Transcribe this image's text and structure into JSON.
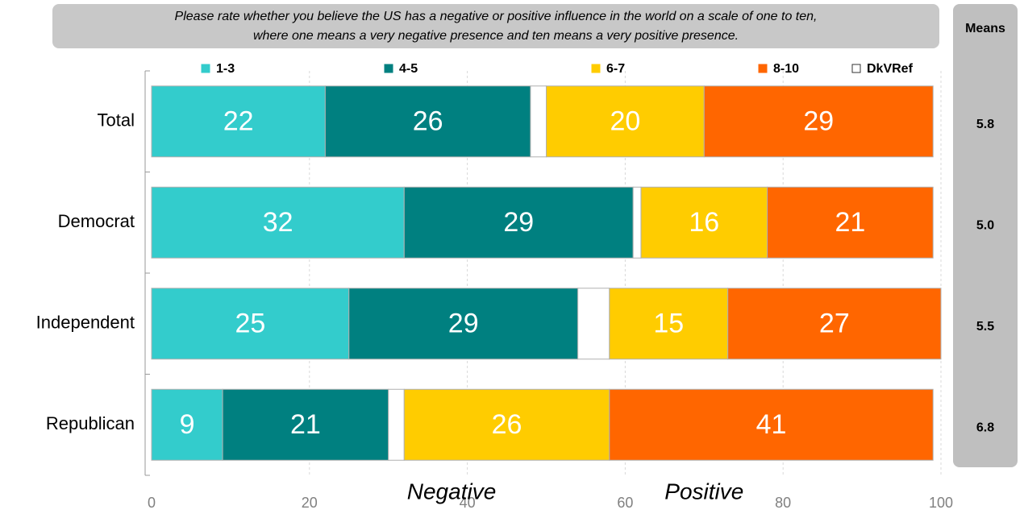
{
  "chart_data": {
    "type": "stacked_bar_horizontal",
    "title": [
      "Please rate whether you believe the US has a negative or positive influence in the world on a scale of one to ten,",
      "where one means a very negative presence and ten means a very positive presence."
    ],
    "categories": [
      "Total",
      "Democrat",
      "Independent",
      "Republican"
    ],
    "series": [
      {
        "name": "1-3",
        "color": "#33CCCC",
        "values": [
          22,
          32,
          25,
          9
        ]
      },
      {
        "name": "4-5",
        "color": "#008080",
        "values": [
          26,
          29,
          29,
          21
        ]
      },
      {
        "name": "DkVRef",
        "color": "#FFFFFF",
        "values": [
          2,
          1,
          4,
          2
        ],
        "labels": false
      },
      {
        "name": "6-7",
        "color": "#FFCC00",
        "values": [
          20,
          16,
          15,
          26
        ]
      },
      {
        "name": "8-10",
        "color": "#FF6600",
        "values": [
          29,
          21,
          27,
          41
        ]
      }
    ],
    "legend_order": [
      0,
      1,
      3,
      4,
      2
    ],
    "xlim": [
      0,
      100
    ],
    "xticks": [
      0,
      20,
      40,
      60,
      80,
      100
    ],
    "grid": true,
    "annotations": [
      {
        "text": "Negative",
        "x": 38
      },
      {
        "text": "Positive",
        "x": 70
      }
    ],
    "means": {
      "title": "Means",
      "values": [
        5.8,
        5.0,
        5.5,
        6.8
      ],
      "value_labels": [
        "5.8",
        "5.0",
        "5.5",
        "6.8"
      ]
    }
  }
}
